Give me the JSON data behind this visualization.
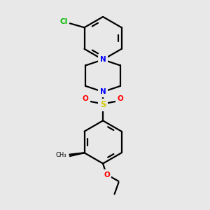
{
  "bg_color": "#e8e8e8",
  "line_color": "#000000",
  "N_color": "#0000ff",
  "O_color": "#ff0000",
  "S_color": "#cccc00",
  "Cl_color": "#00bb00",
  "lw": 1.6,
  "figsize": [
    3.0,
    3.0
  ],
  "dpi": 100,
  "xlim": [
    -1.8,
    1.8
  ],
  "ylim": [
    -2.5,
    2.5
  ]
}
